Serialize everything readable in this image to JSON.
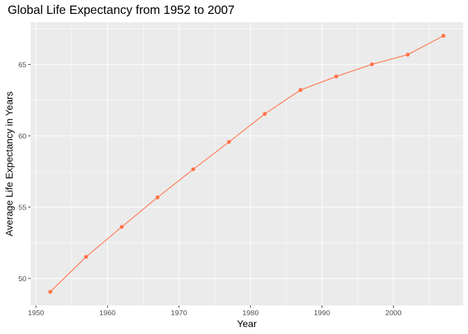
{
  "chart_data": {
    "type": "line",
    "title": "Global Life Expectancy from 1952 to 2007",
    "xlabel": "Year",
    "ylabel": "Average Life Expectancy in Years",
    "x": [
      1952,
      1957,
      1962,
      1967,
      1972,
      1977,
      1982,
      1987,
      1992,
      1997,
      2002,
      2007
    ],
    "series": [
      {
        "values": [
          49.06,
          51.51,
          53.61,
          55.68,
          57.65,
          59.57,
          61.53,
          63.21,
          64.16,
          65.01,
          65.69,
          67.01
        ]
      }
    ],
    "xlim": [
      1949.25,
      2009.75
    ],
    "ylim": [
      48.1,
      67.96
    ],
    "x_ticks": [
      1950,
      1960,
      1970,
      1980,
      1990,
      2000
    ],
    "x_tick_labels": [
      "1950",
      "1960",
      "1970",
      "1980",
      "1990",
      "2000"
    ],
    "y_ticks": [
      50,
      55,
      60,
      65
    ],
    "y_tick_labels": [
      "50",
      "55",
      "60",
      "65"
    ],
    "grid": true,
    "colors": {
      "series": "#ff7247",
      "panel_background": "#ebebeb",
      "grid": "#ffffff"
    }
  }
}
